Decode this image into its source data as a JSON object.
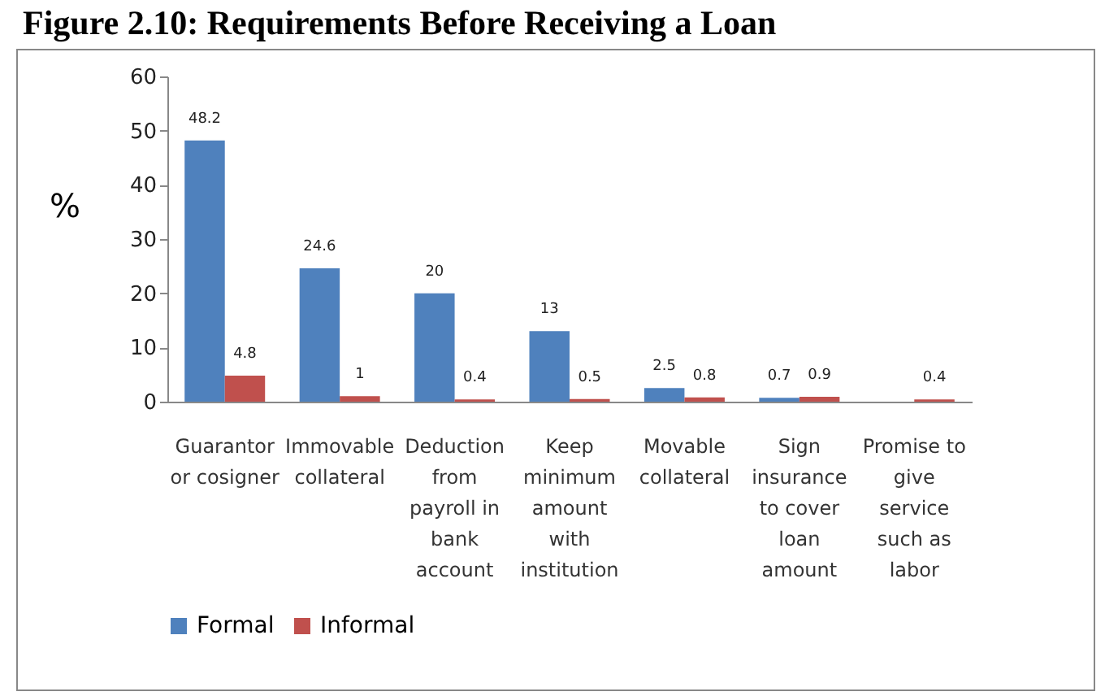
{
  "chart_data": {
    "type": "bar",
    "title": "Figure 2.10: Requirements Before Receiving a Loan",
    "ylabel": "%",
    "categories": [
      "Guarantor or cosigner",
      "Immovable collateral",
      "Deduction from payroll in bank account",
      "Keep minimum amount with institution",
      "Movable collateral",
      "Sign insurance to cover loan amount",
      "Promise to give service such as labor"
    ],
    "series": [
      {
        "name": "Formal",
        "color": "#4f81bd",
        "values": [
          48.2,
          24.6,
          20,
          13,
          2.5,
          0.7,
          null
        ]
      },
      {
        "name": "Informal",
        "color": "#c0504d",
        "values": [
          4.8,
          1,
          0.4,
          0.5,
          0.8,
          0.9,
          0.4
        ]
      }
    ],
    "ylim": [
      0,
      60
    ],
    "yticks": [
      0,
      10,
      20,
      30,
      40,
      50,
      60
    ],
    "grid": false,
    "legend": "bottom",
    "data_labels": true
  }
}
